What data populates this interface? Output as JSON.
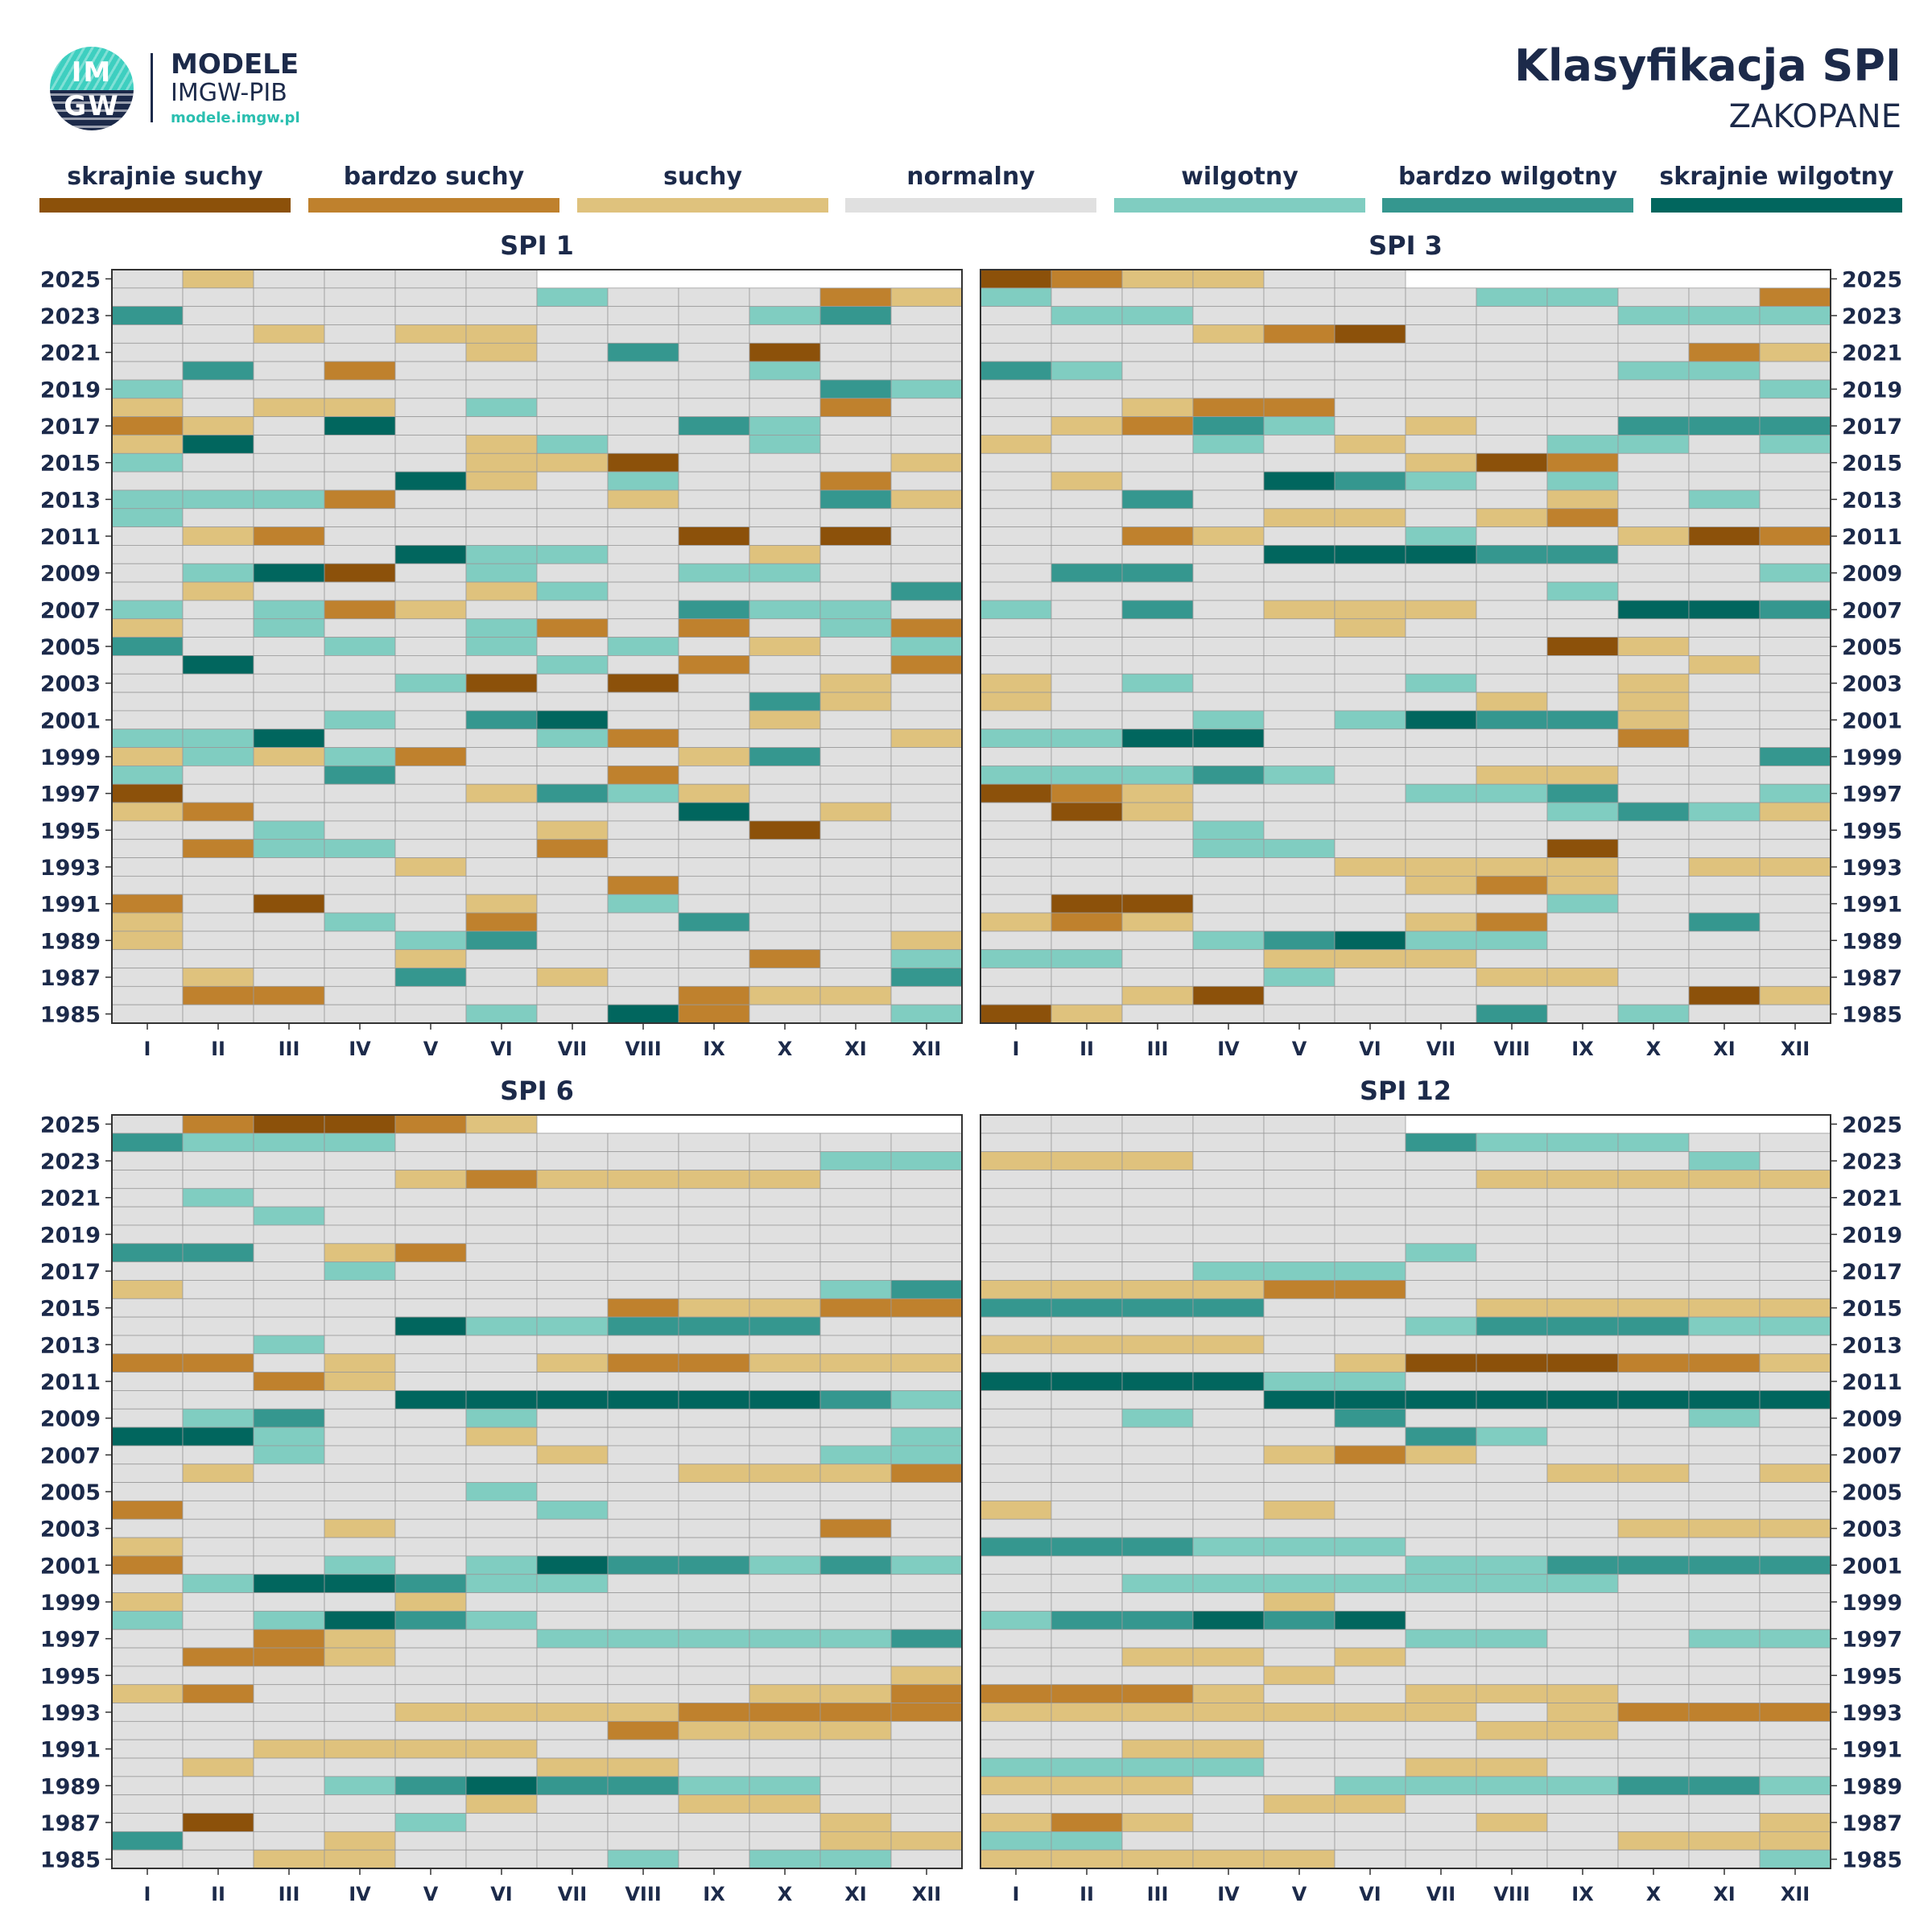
{
  "logo": {
    "line1": "MODELE",
    "line2": "IMGW-PIB",
    "url": "modele.imgw.pl",
    "badge_top": "IM",
    "badge_bottom": "GW"
  },
  "header": {
    "title": "Klasyfikacja SPI",
    "subtitle": "ZAKOPANE"
  },
  "legend": [
    {
      "label": "skrajnie suchy",
      "color": "#8c510a"
    },
    {
      "label": "bardzo suchy",
      "color": "#bf812d"
    },
    {
      "label": "suchy",
      "color": "#dfc27d"
    },
    {
      "label": "normalny",
      "color": "#e0e0e0"
    },
    {
      "label": "wilgotny",
      "color": "#80cdc1"
    },
    {
      "label": "bardzo wilgotny",
      "color": "#35978f"
    },
    {
      "label": "skrajnie wilgotny",
      "color": "#01665e"
    }
  ],
  "chart_data": [
    {
      "type": "heatmap",
      "title": "SPI 1",
      "categories": [
        "I",
        "II",
        "III",
        "IV",
        "V",
        "VI",
        "VII",
        "VIII",
        "IX",
        "X",
        "XI",
        "XII"
      ],
      "y_tick_labels": [
        "2025",
        "2023",
        "2021",
        "2019",
        "2017",
        "2015",
        "2013",
        "2011",
        "2009",
        "2007",
        "2005",
        "2003",
        "2001",
        "1999",
        "1997",
        "1995",
        "1993",
        "1991",
        "1989",
        "1987",
        "1985"
      ],
      "rows_top_to_bottom": [
        "2025: N S N N N N _ _ _ _ _ _",
        "2024: N N N N N N W N N N B S",
        "2023: V N N N N N N N N W V N",
        "2022: N N S N S S N N N N N N",
        "2021: N N N N N S N V N E N N",
        "2020: N V N B N N N N N W N N",
        "2019: W N N N N N N N N N V W",
        "2018: S N S S N W N N N N B N",
        "2017: B S N X N N N N V W N N",
        "2016: S X N N N S W N N W N N",
        "2015: W N N N N S S E N N N S",
        "2014: N N N N X S N W N N B N",
        "2013: W W W B N N N S N N V S",
        "2012: W N N N N N N N N N N N",
        "2011: N S B N N N N N E N E N",
        "2010: N N N N X W W N N S N N",
        "2009: N W X E N W N N W W N N",
        "2008: N S N N N S W N N N N V",
        "2007: W N W B S N N N V W W N",
        "2006: S N W N N W B N B N W B",
        "2005: V N N W N W N W N S N W",
        "2004: N X N N N N W N B N N B",
        "2003: N N N N W E N E N N S N",
        "2002: N N N N N N N N N V S N",
        "2001: N N N W N V X N N S N N",
        "2000: W W X N N N W B N N N S",
        "1999: S W S W B N N N S V N N",
        "1998: W N N V N N N B N N N N",
        "1997: E N N N N S V W S N N N",
        "1996: S B N N N N N N X N S N",
        "1995: N N W N N N S N N E N N",
        "1994: N B W W N N B N N N N N",
        "1993: N N N N S N N N N N N N",
        "1992: N N N N N N N B N N N N",
        "1991: B N E N N S N W N N N N",
        "1990: S N N W N B N N V N N N",
        "1989: S N N N W V N N N N N S",
        "1988: N N N N S N N N N B N W",
        "1987: N S N N V N S N N N N V",
        "1986: N B B N N N N N B S S N",
        "1985: N N N N N W N X B N N W"
      ]
    },
    {
      "type": "heatmap",
      "title": "SPI 3",
      "categories": [
        "I",
        "II",
        "III",
        "IV",
        "V",
        "VI",
        "VII",
        "VIII",
        "IX",
        "X",
        "XI",
        "XII"
      ],
      "y_tick_labels": [
        "2025",
        "2023",
        "2021",
        "2019",
        "2017",
        "2015",
        "2013",
        "2011",
        "2009",
        "2007",
        "2005",
        "2003",
        "2001",
        "1999",
        "1997",
        "1995",
        "1993",
        "1991",
        "1989",
        "1987",
        "1985"
      ],
      "rows_top_to_bottom": [
        "2025: E B S S N N _ _ _ _ _ _",
        "2024: W N N N N N N W W N N B",
        "2023: N W W N N N N N N W W W",
        "2022: N N N S B E N N N N N N",
        "2021: N N N N N N N N N N B S",
        "2020: V W N N N N N N N W W N",
        "2019: N N N N N N N N N N N W",
        "2018: N N S B B N N N N N N N",
        "2017: N S B V W N S N N V V V",
        "2016: S N N W N S N N W W N W",
        "2015: N N N N N N S E B N N N",
        "2014: N S N N X V W N W N N N",
        "2013: N N V N N N N N S N W N",
        "2012: N N N N S S N S B N N N",
        "2011: N N B S N N W N N S E B",
        "2010: N N N N X X X V V N N N",
        "2009: N V V N N N N N N N N W",
        "2008: N N N N N N N N W N N N",
        "2007: W N V N S S S N N X X V",
        "2006: N N N N N S N N N N N N",
        "2005: N N N N N N N N E S N N",
        "2004: N N N N N N N N N N S N",
        "2003: S N W N N N W N N S N N",
        "2002: S N N N N N N S N S N N",
        "2001: N N N W N W X V V S N N",
        "2000: W W X X N N N N N B N N",
        "1999: N N N N N N N N N N N V",
        "1998: W W W V W N N S S N N N",
        "1997: E B S N N N W W V N N W",
        "1996: N E S N N N N N W V W S",
        "1995: N N N W N N N N N N N N",
        "1994: N N N W W N N N E N N N",
        "1993: N N N N N S S S S N S S",
        "1992: N N N N N N S B S N N N",
        "1991: N E E N N N N N W N N N",
        "1990: S B S N N N S B N N V N",
        "1989: N N N W V X W W N N N N",
        "1988: W W N N S S S N N N N N",
        "1987: N N N N W N N S S N N N",
        "1986: N N S E N N N N N N E S",
        "1985: E S N N N N N V N W N N"
      ]
    },
    {
      "type": "heatmap",
      "title": "SPI 6",
      "categories": [
        "I",
        "II",
        "III",
        "IV",
        "V",
        "VI",
        "VII",
        "VIII",
        "IX",
        "X",
        "XI",
        "XII"
      ],
      "y_tick_labels": [
        "2025",
        "2023",
        "2021",
        "2019",
        "2017",
        "2015",
        "2013",
        "2011",
        "2009",
        "2007",
        "2005",
        "2003",
        "2001",
        "1999",
        "1997",
        "1995",
        "1993",
        "1991",
        "1989",
        "1987",
        "1985"
      ],
      "rows_top_to_bottom": [
        "2025: N B E E B S _ _ _ _ _ _",
        "2024: V W W W N N N N N N N N",
        "2023: N N N N N N N N N N W W",
        "2022: N N N N S B S S S S N N",
        "2021: N W N N N N N N N N N N",
        "2020: N N W N N N N N N N N N",
        "2019: N N N N N N N N N N N N",
        "2018: V V N S B N N N N N N N",
        "2017: N N N W N N N N N N N N",
        "2016: S N N N N N N N N N W V",
        "2015: N N N N N N N B S S B B",
        "2014: N N N N X W W V V V N N",
        "2013: N N W N N N N N N N N N",
        "2012: B B N S N N S B B S S S",
        "2011: N N B S N N N N N N N N",
        "2010: N N N N X X X X X X V W",
        "2009: N W V N N W N N N N N N",
        "2008: X X W N N S N N N N N W",
        "2007: N N W N N N S N N N W W",
        "2006: N S N N N N N N S S S B",
        "2005: N N N N N W N N N N N N",
        "2004: B N N N N N W N N N N N",
        "2003: N N N S N N N N N N B N",
        "2002: S N N N N N N N N N N N",
        "2001: B N N W N W X V V W V W",
        "2000: N W X X V W W N N N N N",
        "1999: S N N N S N N N N N N N",
        "1998: W N W X V W N N N N N N",
        "1997: N N B S N N W W W W W V",
        "1996: N B B S N N N N N N N N",
        "1995: N N N N N N N N N N N S",
        "1994: S B N N N N N N N S S B",
        "1993: N N N N S S S S B B B B",
        "1992: N N N N N N N B S S S N",
        "1991: N N S S S S N N N N N N",
        "1990: N S N N N N S S N N N N",
        "1989: N N N W V X V V W W N N",
        "1988: N N N N N S N N S S N N",
        "1987: N E N N W N N N N N S N",
        "1986: V N N S N N N N N N S S",
        "1985: N N S S N N N W N W W N"
      ]
    },
    {
      "type": "heatmap",
      "title": "SPI 12",
      "categories": [
        "I",
        "II",
        "III",
        "IV",
        "V",
        "VI",
        "VII",
        "VIII",
        "IX",
        "X",
        "XI",
        "XII"
      ],
      "y_tick_labels": [
        "2025",
        "2023",
        "2021",
        "2019",
        "2017",
        "2015",
        "2013",
        "2011",
        "2009",
        "2007",
        "2005",
        "2003",
        "2001",
        "1999",
        "1997",
        "1995",
        "1993",
        "1991",
        "1989",
        "1987",
        "1985"
      ],
      "rows_top_to_bottom": [
        "2025: N N N N N N _ _ _ _ _ _",
        "2024: N N N N N N V W W W N N",
        "2023: S S S N N N N N N N W N",
        "2022: N N N N N N N S S S S S",
        "2021: N N N N N N N N N N N N",
        "2020: N N N N N N N N N N N N",
        "2019: N N N N N N N N N N N N",
        "2018: N N N N N N W N N N N N",
        "2017: N N N W W W N N N N N N",
        "2016: S S S S B B N N N N N N",
        "2015: V V V V N N N S S S S S",
        "2014: N N N N N N W V V V W W",
        "2013: S S S S N N N N N N N N",
        "2012: N N N N N S E E E B B S",
        "2011: X X X X W W N N N N N N",
        "2010: N N N N X X X X X X X X",
        "2009: N N W N N V N N N N W N",
        "2008: N N N N N N V W N N N N",
        "2007: N N N N S B S N N N N N",
        "2006: N N N N N N N N S S N S",
        "2005: N N N N N N N N N N N N",
        "2004: S N N N S N N N N N N N",
        "2003: N N N N N N N N N S S S",
        "2002: V V V W W W N N N N N N",
        "2001: N N N N N N W W V V V V",
        "2000: N N W W W W W W W N N N",
        "1999: N N N N S N N N N N N N",
        "1998: W V V X V X N N N N N N",
        "1997: N N N N N N W W N N W W",
        "1996: N N S S N S N N N N N N",
        "1995: N N N N S N N N N N N N",
        "1994: B B B S N N S S S N N N",
        "1993: S S S S S S S N S B B B",
        "1992: N N N N N N N S S N N N",
        "1991: N N S S N N N N N N N N",
        "1990: W W W W N N S S N N N N",
        "1989: S S S N N W W W W V V W",
        "1988: N N N N S S N N N N N N",
        "1987: S B S N N N N S N N N S",
        "1986: W W N N N N N N N S S S",
        "1985: S S S S S N N N N N N W"
      ]
    }
  ],
  "code_key": {
    "E": "skrajnie suchy",
    "B": "bardzo suchy",
    "S": "suchy",
    "N": "normalny",
    "W": "wilgotny",
    "V": "bardzo wilgotny",
    "X": "skrajnie wilgotny"
  }
}
